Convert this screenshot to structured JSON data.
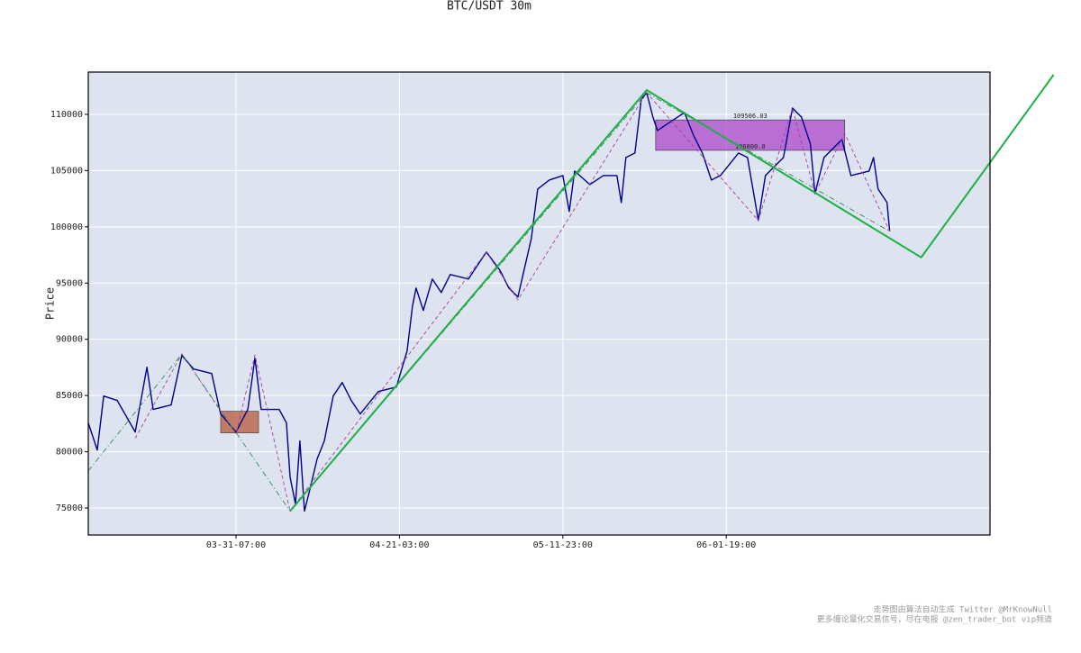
{
  "chart_data": {
    "type": "line",
    "title": "BTC/USDT 30m",
    "y_label": "Price",
    "xlim": [
      96,
      5614
    ],
    "ylim": [
      72600,
      113760
    ],
    "xticks": [
      {
        "value": 1000,
        "label": "03-31-07:00"
      },
      {
        "value": 2000,
        "label": "04-21-03:00"
      },
      {
        "value": 3000,
        "label": "05-11-23:00"
      },
      {
        "value": 4000,
        "label": "06-01-19:00"
      }
    ],
    "yticks": [
      75000,
      80000,
      85000,
      90000,
      95000,
      100000,
      105000,
      110000
    ],
    "grid": true,
    "background": "#dde3ef",
    "series": [
      {
        "color": "#00008b",
        "width": 1.4,
        "dash": "",
        "x": [
          96,
          151,
          190,
          273,
          383,
          455,
          493,
          603,
          669,
          741,
          851,
          906,
          1000,
          1072,
          1116,
          1154,
          1264,
          1309,
          1331,
          1364,
          1391,
          1419,
          1457,
          1496,
          1540,
          1595,
          1650,
          1705,
          1760,
          1871,
          1981,
          2047,
          2080,
          2102,
          2146,
          2201,
          2256,
          2311,
          2422,
          2532,
          2614,
          2670,
          2725,
          2807,
          2846,
          2917,
          3000,
          3039,
          3072,
          3165,
          3248,
          3331,
          3358,
          3386,
          3441,
          3480,
          3513,
          3551,
          3579,
          3661,
          3744,
          3799,
          3854,
          3909,
          3964,
          4075,
          4130,
          4196,
          4240,
          4350,
          4405,
          4460,
          4515,
          4543,
          4598,
          4708,
          4763,
          4874,
          4901,
          4929,
          4984,
          5000
        ],
        "values": [
          82560,
          80160,
          84960,
          84560,
          81760,
          87520,
          83760,
          84160,
          88560,
          87360,
          86960,
          83360,
          81760,
          83760,
          88320,
          83760,
          83760,
          82560,
          77760,
          75360,
          80960,
          74720,
          76960,
          79360,
          80960,
          84960,
          86160,
          84560,
          83360,
          85360,
          85760,
          88960,
          92960,
          94560,
          92560,
          95360,
          94160,
          95760,
          95360,
          97760,
          96160,
          94560,
          93760,
          98960,
          103360,
          104160,
          104560,
          101360,
          104960,
          103760,
          104560,
          104560,
          102160,
          106160,
          106560,
          111360,
          111920,
          109760,
          108560,
          109360,
          110160,
          108160,
          106560,
          104160,
          104560,
          106560,
          106160,
          100560,
          104560,
          106160,
          110560,
          109760,
          107360,
          102960,
          106160,
          107760,
          104560,
          104960,
          106160,
          103360,
          102160,
          99600
        ]
      },
      {
        "color": "#a040a0",
        "width": 0.9,
        "dash": "4 3",
        "x": [
          383,
          669,
          1000,
          1116,
          1331,
          2532,
          2725,
          3513,
          4196,
          4405,
          4543,
          4725,
          5000
        ],
        "values": [
          81200,
          88700,
          81600,
          88600,
          74720,
          97760,
          93500,
          111920,
          100560,
          110560,
          102960,
          108300,
          99600
        ]
      },
      {
        "color": "#2e8b57",
        "width": 0.9,
        "dash": "6 3 1 3",
        "x": [
          96,
          669,
          1331,
          3513,
          5000
        ],
        "values": [
          78300,
          88700,
          74720,
          111920,
          99600
        ]
      },
      {
        "color": "#1db045",
        "width": 2,
        "dash": "",
        "x": [
          1331,
          3513,
          5193,
          6003
        ],
        "values": [
          74720,
          112160,
          97280,
          113520
        ]
      }
    ],
    "zones": [
      {
        "x": [
          906,
          1138
        ],
        "y": [
          81680,
          83600
        ],
        "color": "#b5502f",
        "opacity": 0.7
      },
      {
        "x": [
          3568,
          4725
        ],
        "y": [
          106800,
          109506.03
        ],
        "value_labels": [
          "106800.0",
          "109506.03"
        ],
        "color": "#a020c0",
        "opacity": 0.6
      }
    ],
    "footer": [
      "走势图由算法自动生成  Twitter @MrKnowNull",
      "更多缠论量化交易信号，尽在电报 @zen_trader_bot vip频道"
    ]
  }
}
